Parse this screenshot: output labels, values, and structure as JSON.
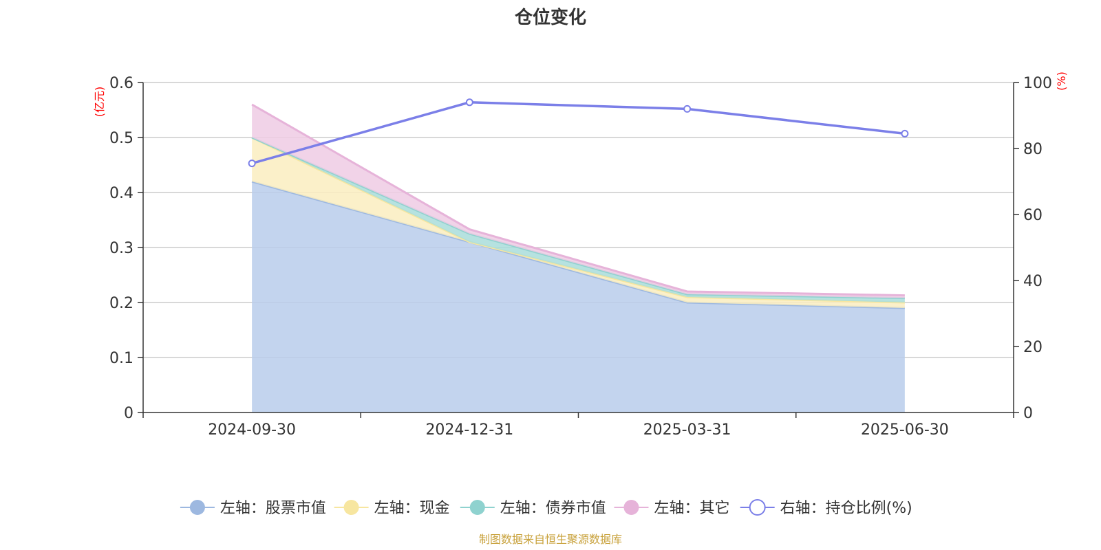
{
  "chart_data": {
    "type": "area",
    "title": "仓位变化",
    "categories": [
      "2024-09-30",
      "2024-12-31",
      "2025-03-31",
      "2025-06-30"
    ],
    "left_axis": {
      "unit": "(亿元)",
      "ylim": [
        0,
        0.6
      ],
      "ticks": [
        "0",
        "0.1",
        "0.2",
        "0.3",
        "0.4",
        "0.5",
        "0.6"
      ]
    },
    "right_axis": {
      "unit": "(%)",
      "ylim": [
        0,
        100
      ],
      "ticks": [
        "0",
        "20",
        "40",
        "60",
        "80",
        "100"
      ]
    },
    "series": [
      {
        "name": "左轴：股票市值",
        "axis": "left",
        "stack": true,
        "color": "#9db8e0",
        "fill": "#b8cdeb",
        "values": [
          0.42,
          0.31,
          0.2,
          0.19
        ]
      },
      {
        "name": "左轴：现金",
        "axis": "left",
        "stack": true,
        "color": "#f7e6a0",
        "fill": "#faedbf",
        "values": [
          0.08,
          0.0,
          0.01,
          0.01
        ]
      },
      {
        "name": "左轴：债券市值",
        "axis": "left",
        "stack": true,
        "color": "#8fd2cf",
        "fill": "#a9ddda",
        "values": [
          0.0,
          0.015,
          0.005,
          0.008
        ]
      },
      {
        "name": "左轴：其它",
        "axis": "left",
        "stack": true,
        "color": "#e6b3d9",
        "fill": "#eecbe4",
        "values": [
          0.06,
          0.008,
          0.005,
          0.005
        ]
      },
      {
        "name": "右轴：持仓比例(%)",
        "axis": "right",
        "stack": false,
        "color": "#7b7fe8",
        "values": [
          75.5,
          94,
          92,
          84.5
        ]
      }
    ],
    "grid": true,
    "legend_position": "bottom"
  },
  "source_note": "制图数据来自恒生聚源数据库"
}
